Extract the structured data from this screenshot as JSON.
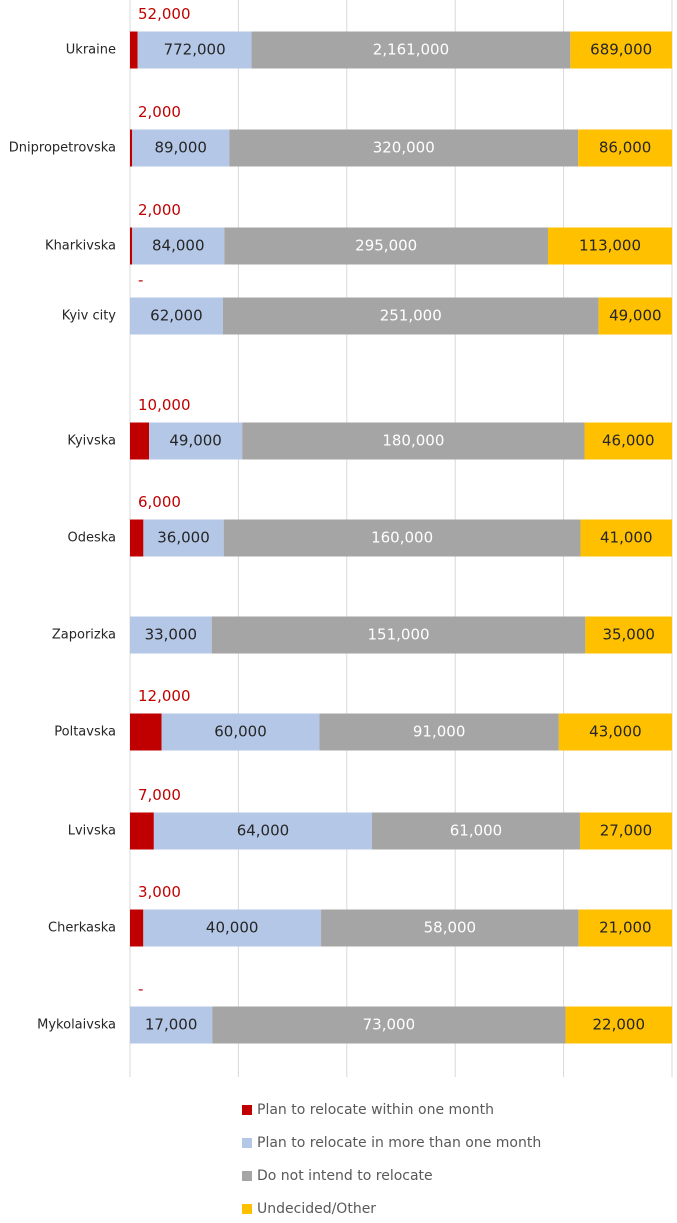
{
  "chart_data": {
    "type": "stacked-bar-100",
    "categories": [
      "Ukraine",
      "Dnipropetrovska",
      "Kharkivska",
      "Kyiv city",
      "Kyivska",
      "Odeska",
      "Zaporizka",
      "Poltavska",
      "Lvivska",
      "Cherkaska",
      "Mykolaivska"
    ],
    "series": [
      {
        "name": "Plan to relocate within one month",
        "color": "#c00000",
        "label_color": "#c00000",
        "values": [
          52000,
          2000,
          2000,
          0,
          10000,
          6000,
          null,
          12000,
          7000,
          3000,
          0
        ],
        "value_labels": [
          "52,000",
          "2,000",
          "2,000",
          "-",
          "10,000",
          "6,000",
          null,
          "12,000",
          "7,000",
          "3,000",
          "-"
        ]
      },
      {
        "name": "Plan to relocate in more than one month",
        "color": "#b4c7e7",
        "label_color": "#262626",
        "values": [
          772000,
          89000,
          84000,
          62000,
          49000,
          36000,
          33000,
          60000,
          64000,
          40000,
          17000
        ],
        "value_labels": [
          "772,000",
          "89,000",
          "84,000",
          "62,000",
          "49,000",
          "36,000",
          "33,000",
          "60,000",
          "64,000",
          "40,000",
          "17,000"
        ]
      },
      {
        "name": "Do not intend to relocate",
        "color": "#a5a5a5",
        "label_color": "#ffffff",
        "values": [
          2161000,
          320000,
          295000,
          251000,
          180000,
          160000,
          151000,
          91000,
          61000,
          58000,
          73000
        ],
        "value_labels": [
          "2,161,000",
          "320,000",
          "295,000",
          "251,000",
          "180,000",
          "160,000",
          "151,000",
          "91,000",
          "61,000",
          "58,000",
          "73,000"
        ]
      },
      {
        "name": "Undecided/Other",
        "color": "#ffc000",
        "label_color": "#262626",
        "values": [
          689000,
          86000,
          113000,
          49000,
          46000,
          41000,
          35000,
          43000,
          27000,
          21000,
          22000
        ],
        "value_labels": [
          "689,000",
          "86,000",
          "113,000",
          "49,000",
          "46,000",
          "41,000",
          "35,000",
          "43,000",
          "27,000",
          "21,000",
          "22,000"
        ]
      }
    ],
    "xlim": [
      0,
      100
    ],
    "xticks": [
      0,
      20,
      40,
      60,
      80,
      100
    ],
    "grid": true,
    "legend": "bottom"
  }
}
